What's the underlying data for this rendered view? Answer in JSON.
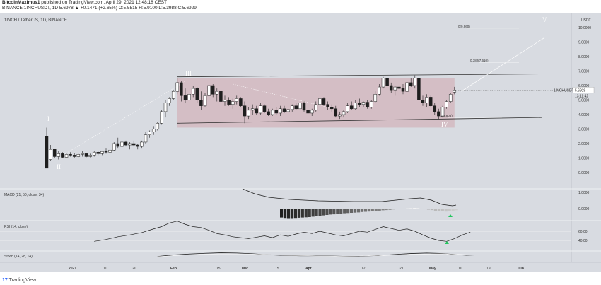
{
  "header": {
    "line1_author": "BitcoinMaximus1",
    "line1_text": " published on TradingView.com, April 29, 2021 12:48:18 CEST",
    "line2": "BINANCE:1INCHUSDT, 1D 5.6978 ▲ +0.1471 (+2.65%) O:5.5515 H:5.9100 L:5.3988 C:5.6929"
  },
  "symbol_label": "1INCH / TetherUS, 1D, BINANCE",
  "price_axis": {
    "currency": "USDT",
    "ticks": [
      "10.0000",
      "9.0000",
      "8.0000",
      "7.0000",
      "6.0000",
      "5.0000",
      "4.0000",
      "3.0000",
      "2.0000",
      "1.0000",
      "0.0000"
    ],
    "price_tag_symbol": "1INCHUSDT",
    "price_tag_value": "5.6929",
    "price_tag_countdown": "13:11:42"
  },
  "x_axis_ticks": [
    "2021",
    "11",
    "20",
    "Feb",
    "15",
    "Mar",
    "15",
    "Apr",
    "12",
    "21",
    "May",
    "10",
    "19",
    "Jun"
  ],
  "fib_labels": [
    "0(9.960)",
    "0.382(7.610)",
    "1(3.806)"
  ],
  "wave_labels": [
    "I",
    "II",
    "III",
    "IV",
    "V"
  ],
  "macd_label": "MACD (21, 50, close, 34)",
  "macd_axis": [
    "1.0000",
    "0.0000"
  ],
  "rsi_label": "RSI (14, close)",
  "rsi_axis": [
    "60.00",
    "40.00"
  ],
  "stoch_label": "Stoch (14, 28, 14)",
  "footer": "TradingView",
  "colors": {
    "background": "#d8dbe1",
    "range_box": "#d4b8bf",
    "up_candle": "#ffffff",
    "down_candle": "#1e1e1e",
    "signal_arrow": "#22c55e"
  },
  "chart_data": {
    "type": "candlestick",
    "pair": "1INCHUSDT",
    "price_range": [
      0,
      10
    ],
    "candles": [
      {
        "o": 2.5,
        "h": 3.1,
        "l": 0.3,
        "c": 0.3
      },
      {
        "o": 0.9,
        "h": 1.9,
        "l": 0.8,
        "c": 1.6
      },
      {
        "o": 1.6,
        "h": 1.6,
        "l": 1.0,
        "c": 1.1
      },
      {
        "o": 1.1,
        "h": 1.5,
        "l": 0.9,
        "c": 1.3
      },
      {
        "o": 1.3,
        "h": 1.4,
        "l": 1.0,
        "c": 1.05
      },
      {
        "o": 1.05,
        "h": 1.3,
        "l": 1.0,
        "c": 1.25
      },
      {
        "o": 1.25,
        "h": 1.4,
        "l": 1.1,
        "c": 1.2
      },
      {
        "o": 1.2,
        "h": 1.35,
        "l": 1.0,
        "c": 1.1
      },
      {
        "o": 1.1,
        "h": 1.3,
        "l": 1.05,
        "c": 1.25
      },
      {
        "o": 1.25,
        "h": 1.5,
        "l": 1.1,
        "c": 1.3
      },
      {
        "o": 1.3,
        "h": 1.35,
        "l": 1.05,
        "c": 1.1
      },
      {
        "o": 1.1,
        "h": 1.3,
        "l": 1.05,
        "c": 1.2
      },
      {
        "o": 1.2,
        "h": 1.5,
        "l": 1.1,
        "c": 1.4
      },
      {
        "o": 1.4,
        "h": 1.5,
        "l": 1.2,
        "c": 1.3
      },
      {
        "o": 1.3,
        "h": 1.5,
        "l": 1.2,
        "c": 1.45
      },
      {
        "o": 1.45,
        "h": 1.7,
        "l": 1.3,
        "c": 1.4
      },
      {
        "o": 1.4,
        "h": 1.6,
        "l": 1.3,
        "c": 1.55
      },
      {
        "o": 1.55,
        "h": 2.1,
        "l": 1.5,
        "c": 2.0
      },
      {
        "o": 2.0,
        "h": 2.4,
        "l": 1.7,
        "c": 1.8
      },
      {
        "o": 1.8,
        "h": 2.3,
        "l": 1.7,
        "c": 2.1
      },
      {
        "o": 2.1,
        "h": 2.2,
        "l": 1.8,
        "c": 1.9
      },
      {
        "o": 1.9,
        "h": 2.1,
        "l": 1.6,
        "c": 2.0
      },
      {
        "o": 2.0,
        "h": 2.2,
        "l": 1.8,
        "c": 1.9
      },
      {
        "o": 1.9,
        "h": 2.0,
        "l": 1.6,
        "c": 1.8
      },
      {
        "o": 1.8,
        "h": 2.2,
        "l": 1.7,
        "c": 2.1
      },
      {
        "o": 2.1,
        "h": 2.8,
        "l": 2.0,
        "c": 2.6
      },
      {
        "o": 2.6,
        "h": 2.9,
        "l": 2.4,
        "c": 2.8
      },
      {
        "o": 2.8,
        "h": 3.2,
        "l": 2.6,
        "c": 3.0
      },
      {
        "o": 3.0,
        "h": 3.5,
        "l": 2.9,
        "c": 3.4
      },
      {
        "o": 3.4,
        "h": 4.3,
        "l": 3.3,
        "c": 4.2
      },
      {
        "o": 4.2,
        "h": 5.0,
        "l": 3.8,
        "c": 4.8
      },
      {
        "o": 4.8,
        "h": 5.2,
        "l": 4.6,
        "c": 5.1
      },
      {
        "o": 5.1,
        "h": 5.7,
        "l": 5.0,
        "c": 5.6
      },
      {
        "o": 5.6,
        "h": 6.5,
        "l": 5.4,
        "c": 6.2
      },
      {
        "o": 6.2,
        "h": 6.3,
        "l": 4.9,
        "c": 5.3
      },
      {
        "o": 5.3,
        "h": 5.8,
        "l": 4.8,
        "c": 5.0
      },
      {
        "o": 5.0,
        "h": 5.6,
        "l": 4.5,
        "c": 5.4
      },
      {
        "o": 5.4,
        "h": 6.0,
        "l": 5.2,
        "c": 5.8
      },
      {
        "o": 5.8,
        "h": 5.9,
        "l": 4.8,
        "c": 5.0
      },
      {
        "o": 5.0,
        "h": 5.6,
        "l": 4.3,
        "c": 4.6
      },
      {
        "o": 4.6,
        "h": 5.5,
        "l": 4.5,
        "c": 5.3
      },
      {
        "o": 5.3,
        "h": 6.4,
        "l": 5.2,
        "c": 6.0
      },
      {
        "o": 6.0,
        "h": 6.1,
        "l": 5.2,
        "c": 5.4
      },
      {
        "o": 5.4,
        "h": 5.8,
        "l": 4.9,
        "c": 5.6
      },
      {
        "o": 5.6,
        "h": 5.7,
        "l": 4.7,
        "c": 4.9
      },
      {
        "o": 4.9,
        "h": 5.3,
        "l": 4.6,
        "c": 5.0
      },
      {
        "o": 5.0,
        "h": 5.2,
        "l": 4.6,
        "c": 4.7
      },
      {
        "o": 4.7,
        "h": 5.1,
        "l": 4.4,
        "c": 4.9
      },
      {
        "o": 4.9,
        "h": 5.3,
        "l": 4.7,
        "c": 5.1
      },
      {
        "o": 5.1,
        "h": 5.2,
        "l": 4.5,
        "c": 4.6
      },
      {
        "o": 4.6,
        "h": 4.9,
        "l": 3.4,
        "c": 3.9
      },
      {
        "o": 3.9,
        "h": 4.5,
        "l": 3.7,
        "c": 4.3
      },
      {
        "o": 4.3,
        "h": 4.7,
        "l": 4.0,
        "c": 4.4
      },
      {
        "o": 4.4,
        "h": 4.6,
        "l": 4.0,
        "c": 4.1
      },
      {
        "o": 4.1,
        "h": 4.8,
        "l": 4.0,
        "c": 4.6
      },
      {
        "o": 4.6,
        "h": 4.7,
        "l": 4.1,
        "c": 4.2
      },
      {
        "o": 4.2,
        "h": 4.4,
        "l": 3.9,
        "c": 4.0
      },
      {
        "o": 4.0,
        "h": 4.4,
        "l": 3.9,
        "c": 4.3
      },
      {
        "o": 4.3,
        "h": 4.5,
        "l": 4.0,
        "c": 4.1
      },
      {
        "o": 4.1,
        "h": 4.6,
        "l": 3.9,
        "c": 4.4
      },
      {
        "o": 4.4,
        "h": 4.6,
        "l": 4.1,
        "c": 4.2
      },
      {
        "o": 4.2,
        "h": 4.5,
        "l": 4.0,
        "c": 4.35
      },
      {
        "o": 4.35,
        "h": 4.7,
        "l": 4.2,
        "c": 4.6
      },
      {
        "o": 4.6,
        "h": 4.8,
        "l": 4.3,
        "c": 4.4
      },
      {
        "o": 4.4,
        "h": 5.0,
        "l": 4.3,
        "c": 4.8
      },
      {
        "o": 4.8,
        "h": 4.9,
        "l": 4.2,
        "c": 4.3
      },
      {
        "o": 4.3,
        "h": 4.5,
        "l": 4.0,
        "c": 4.1
      },
      {
        "o": 4.1,
        "h": 4.4,
        "l": 3.9,
        "c": 4.3
      },
      {
        "o": 4.3,
        "h": 4.9,
        "l": 4.2,
        "c": 4.7
      },
      {
        "o": 4.7,
        "h": 5.2,
        "l": 4.5,
        "c": 5.1
      },
      {
        "o": 5.1,
        "h": 5.2,
        "l": 4.6,
        "c": 4.7
      },
      {
        "o": 4.7,
        "h": 4.9,
        "l": 4.3,
        "c": 4.5
      },
      {
        "o": 4.5,
        "h": 4.7,
        "l": 4.2,
        "c": 4.4
      },
      {
        "o": 4.4,
        "h": 4.6,
        "l": 3.8,
        "c": 3.9
      },
      {
        "o": 3.9,
        "h": 4.2,
        "l": 3.7,
        "c": 4.0
      },
      {
        "o": 4.0,
        "h": 4.3,
        "l": 3.8,
        "c": 4.2
      },
      {
        "o": 4.2,
        "h": 4.8,
        "l": 4.1,
        "c": 4.6
      },
      {
        "o": 4.6,
        "h": 4.9,
        "l": 4.3,
        "c": 4.4
      },
      {
        "o": 4.4,
        "h": 5.0,
        "l": 4.3,
        "c": 4.8
      },
      {
        "o": 4.8,
        "h": 5.1,
        "l": 4.5,
        "c": 4.7
      },
      {
        "o": 4.7,
        "h": 4.9,
        "l": 4.5,
        "c": 4.85
      },
      {
        "o": 4.85,
        "h": 5.0,
        "l": 4.4,
        "c": 4.5
      },
      {
        "o": 4.5,
        "h": 5.0,
        "l": 4.4,
        "c": 4.9
      },
      {
        "o": 4.9,
        "h": 5.6,
        "l": 4.8,
        "c": 5.4
      },
      {
        "o": 5.4,
        "h": 6.1,
        "l": 5.3,
        "c": 5.9
      },
      {
        "o": 5.9,
        "h": 6.6,
        "l": 5.8,
        "c": 6.5
      },
      {
        "o": 6.5,
        "h": 6.7,
        "l": 5.9,
        "c": 6.0
      },
      {
        "o": 6.0,
        "h": 6.2,
        "l": 5.5,
        "c": 5.7
      },
      {
        "o": 5.7,
        "h": 6.0,
        "l": 5.3,
        "c": 5.9
      },
      {
        "o": 5.9,
        "h": 6.3,
        "l": 5.6,
        "c": 5.8
      },
      {
        "o": 5.8,
        "h": 6.1,
        "l": 5.4,
        "c": 5.6
      },
      {
        "o": 5.6,
        "h": 6.3,
        "l": 5.5,
        "c": 6.2
      },
      {
        "o": 6.2,
        "h": 6.5,
        "l": 5.9,
        "c": 6.0
      },
      {
        "o": 6.0,
        "h": 6.7,
        "l": 5.8,
        "c": 6.5
      },
      {
        "o": 6.5,
        "h": 6.6,
        "l": 4.8,
        "c": 5.0
      },
      {
        "o": 5.0,
        "h": 5.3,
        "l": 4.6,
        "c": 4.8
      },
      {
        "o": 4.8,
        "h": 5.4,
        "l": 4.5,
        "c": 5.2
      },
      {
        "o": 5.2,
        "h": 5.3,
        "l": 4.5,
        "c": 4.6
      },
      {
        "o": 4.6,
        "h": 4.8,
        "l": 4.0,
        "c": 4.2
      },
      {
        "o": 4.2,
        "h": 4.4,
        "l": 3.7,
        "c": 3.9
      },
      {
        "o": 3.9,
        "h": 4.6,
        "l": 3.8,
        "c": 4.5
      },
      {
        "o": 4.5,
        "h": 5.0,
        "l": 4.4,
        "c": 4.9
      },
      {
        "o": 4.9,
        "h": 5.5,
        "l": 4.8,
        "c": 5.4
      },
      {
        "o": 5.55,
        "h": 5.91,
        "l": 5.3988,
        "c": 5.6929
      }
    ],
    "channel": {
      "upper": [
        [
          33,
          6.6
        ],
        [
          125,
          6.8
        ]
      ],
      "lower": [
        [
          33,
          3.4
        ],
        [
          125,
          3.8
        ]
      ]
    },
    "range_box": {
      "x0": 33,
      "x1": 103,
      "top": 6.5,
      "bottom": 3.1
    },
    "fib_levels": [
      {
        "label": "0(9.960)",
        "value": 9.96
      },
      {
        "label": "0.382(7.610)",
        "value": 7.61
      },
      {
        "label": "1(3.806)",
        "value": 3.806
      }
    ],
    "current_price": 5.6929,
    "macd_hist": [
      -0.42,
      -0.44,
      -0.45,
      -0.45,
      -0.44,
      -0.43,
      -0.42,
      -0.41,
      -0.4,
      -0.38,
      -0.36,
      -0.34,
      -0.32,
      -0.3,
      -0.28,
      -0.27,
      -0.25,
      -0.24,
      -0.22,
      -0.21,
      -0.2,
      -0.19,
      -0.18,
      -0.16,
      -0.15,
      -0.14,
      -0.12,
      -0.11,
      -0.1,
      -0.08,
      -0.07,
      -0.06,
      -0.04,
      -0.03,
      -0.02,
      -0.01,
      0.01,
      0.02,
      0.03,
      0.02,
      0.0,
      -0.02,
      -0.05,
      -0.07,
      -0.1,
      -0.12,
      -0.13,
      -0.14,
      -0.12,
      -0.1,
      -0.08
    ],
    "rsi_range": [
      20,
      80
    ],
    "rsi_lines": [
      60,
      40
    ],
    "rsi_values": [
      [
        12,
        38
      ],
      [
        15,
        42
      ],
      [
        18,
        48
      ],
      [
        21,
        52
      ],
      [
        24,
        57
      ],
      [
        27,
        65
      ],
      [
        29,
        70
      ],
      [
        31,
        78
      ],
      [
        33,
        82
      ],
      [
        35,
        75
      ],
      [
        37,
        70
      ],
      [
        39,
        68
      ],
      [
        41,
        62
      ],
      [
        43,
        55
      ],
      [
        45,
        52
      ],
      [
        47,
        48
      ],
      [
        49,
        46
      ],
      [
        51,
        44
      ],
      [
        53,
        47
      ],
      [
        55,
        50
      ],
      [
        57,
        46
      ],
      [
        59,
        52
      ],
      [
        61,
        49
      ],
      [
        63,
        54
      ],
      [
        65,
        58
      ],
      [
        67,
        55
      ],
      [
        69,
        60
      ],
      [
        71,
        56
      ],
      [
        73,
        52
      ],
      [
        75,
        50
      ],
      [
        77,
        55
      ],
      [
        79,
        60
      ],
      [
        81,
        58
      ],
      [
        83,
        64
      ],
      [
        85,
        70
      ],
      [
        87,
        66
      ],
      [
        89,
        62
      ],
      [
        91,
        65
      ],
      [
        93,
        60
      ],
      [
        95,
        52
      ],
      [
        97,
        45
      ],
      [
        99,
        40
      ],
      [
        101,
        38
      ],
      [
        103,
        44
      ],
      [
        105,
        52
      ],
      [
        107,
        58
      ]
    ],
    "stoch_values": [
      [
        28,
        50
      ],
      [
        32,
        62
      ],
      [
        36,
        70
      ],
      [
        40,
        76
      ],
      [
        44,
        80
      ],
      [
        48,
        78
      ],
      [
        52,
        72
      ],
      [
        56,
        64
      ],
      [
        60,
        58
      ],
      [
        64,
        55
      ],
      [
        68,
        56
      ],
      [
        72,
        54
      ],
      [
        76,
        50
      ],
      [
        80,
        52
      ],
      [
        84,
        58
      ],
      [
        88,
        66
      ],
      [
        92,
        74
      ],
      [
        96,
        78
      ],
      [
        100,
        74
      ],
      [
        103,
        66
      ],
      [
        106,
        60
      ],
      [
        108,
        62
      ]
    ],
    "stoch_signal": [
      [
        28,
        48
      ],
      [
        36,
        64
      ],
      [
        44,
        72
      ],
      [
        52,
        70
      ],
      [
        60,
        60
      ],
      [
        68,
        54
      ],
      [
        76,
        52
      ],
      [
        84,
        56
      ],
      [
        92,
        68
      ],
      [
        100,
        72
      ],
      [
        108,
        62
      ]
    ]
  }
}
